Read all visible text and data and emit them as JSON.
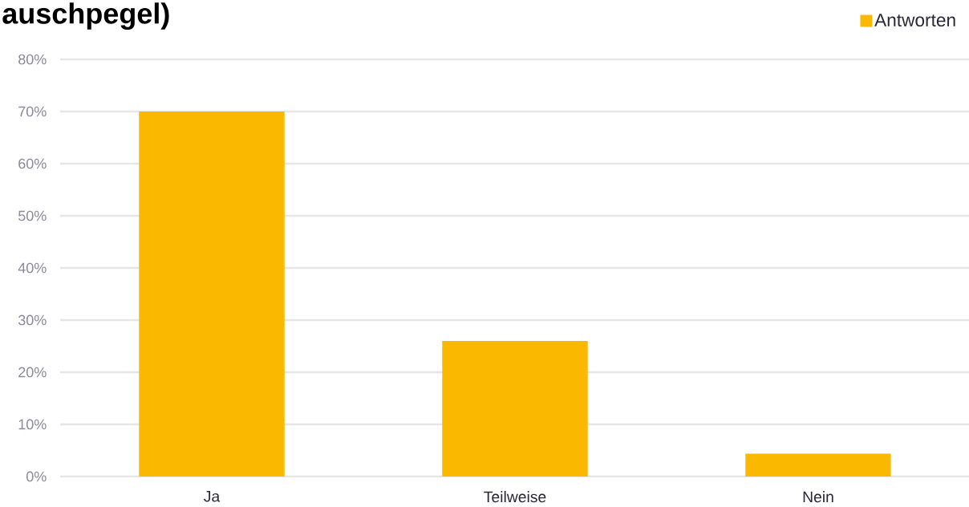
{
  "chart_data": {
    "type": "bar",
    "title": "auschpegel)",
    "categories": [
      "Ja",
      "Teilweise",
      "Nein"
    ],
    "series": [
      {
        "name": "Antworten",
        "color": "#fab900",
        "values": [
          70,
          26,
          4.4
        ]
      }
    ],
    "ylim": [
      0,
      80
    ],
    "yticks": [
      {
        "value": 0,
        "label": "0%"
      },
      {
        "value": 10,
        "label": "10%"
      },
      {
        "value": 20,
        "label": "20%"
      },
      {
        "value": 30,
        "label": "30%"
      },
      {
        "value": 40,
        "label": "40%"
      },
      {
        "value": 50,
        "label": "50%"
      },
      {
        "value": 60,
        "label": "60%"
      },
      {
        "value": 70,
        "label": "70%"
      },
      {
        "value": 80,
        "label": "80%"
      }
    ],
    "grid": "y",
    "legend": "top right"
  }
}
